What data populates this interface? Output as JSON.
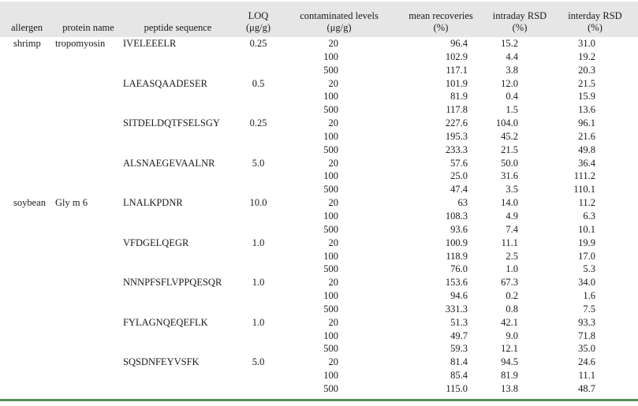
{
  "table": {
    "colors": {
      "header_bg": "#e6e6e6",
      "bottom_rule": "#5b8c5a",
      "text": "#1a1a20"
    },
    "columns": [
      {
        "line1": "allergen",
        "line2": ""
      },
      {
        "line1": "protein name",
        "line2": ""
      },
      {
        "line1": "peptide sequence",
        "line2": ""
      },
      {
        "line1": "LOQ",
        "line2": "(μg/g)"
      },
      {
        "line1": "contaminated levels",
        "line2": "(μg/g)"
      },
      {
        "line1": "mean recoveries",
        "line2": "(%)"
      },
      {
        "line1": "intraday RSD",
        "line2": "(%)"
      },
      {
        "line1": "interday RSD",
        "line2": "(%)"
      }
    ],
    "groups": [
      {
        "allergen": "shrimp",
        "protein": "tropomyosin",
        "peptides": [
          {
            "sequence": "IVELEEELR",
            "loq": "0.25",
            "rows": [
              [
                "20",
                "96.4",
                "15.2",
                "31.0"
              ],
              [
                "100",
                "102.9",
                "4.4",
                "19.2"
              ],
              [
                "500",
                "117.1",
                "3.8",
                "20.3"
              ]
            ]
          },
          {
            "sequence": "LAEASQAADESER",
            "loq": "0.5",
            "rows": [
              [
                "20",
                "101.9",
                "12.0",
                "21.5"
              ],
              [
                "100",
                "81.9",
                "0.4",
                "15.9"
              ],
              [
                "500",
                "117.8",
                "1.5",
                "13.6"
              ]
            ]
          },
          {
            "sequence": "SITDELDQTFSELSGY",
            "loq": "0.25",
            "rows": [
              [
                "20",
                "227.6",
                "104.0",
                "96.1"
              ],
              [
                "100",
                "195.3",
                "45.2",
                "21.6"
              ],
              [
                "500",
                "233.3",
                "21.5",
                "49.8"
              ]
            ]
          },
          {
            "sequence": "ALSNAEGEVAALNR",
            "loq": "5.0",
            "rows": [
              [
                "20",
                "57.6",
                "50.0",
                "36.4"
              ],
              [
                "100",
                "25.0",
                "31.6",
                "111.2"
              ],
              [
                "500",
                "47.4",
                "3.5",
                "110.1"
              ]
            ]
          }
        ]
      },
      {
        "allergen": "soybean",
        "protein": "Gly m 6",
        "peptides": [
          {
            "sequence": "LNALKPDNR",
            "loq": "10.0",
            "rows": [
              [
                "20",
                "63",
                "14.0",
                "11.2"
              ],
              [
                "100",
                "108.3",
                "4.9",
                "6.3"
              ],
              [
                "500",
                "93.6",
                "7.4",
                "10.1"
              ]
            ]
          },
          {
            "sequence": "VFDGELQEGR",
            "loq": "1.0",
            "rows": [
              [
                "20",
                "100.9",
                "11.1",
                "19.9"
              ],
              [
                "100",
                "118.9",
                "2.5",
                "17.0"
              ],
              [
                "500",
                "76.0",
                "1.0",
                "5.3"
              ]
            ]
          },
          {
            "sequence": "NNNPFSFLVPPQESQR",
            "loq": "1.0",
            "rows": [
              [
                "20",
                "153.6",
                "67.3",
                "34.0"
              ],
              [
                "100",
                "94.6",
                "0.2",
                "1.6"
              ],
              [
                "500",
                "331.3",
                "0.8",
                "7.5"
              ]
            ]
          },
          {
            "sequence": "FYLAGNQEQEFLK",
            "loq": "1.0",
            "rows": [
              [
                "20",
                "51.3",
                "42.1",
                "93.3"
              ],
              [
                "100",
                "49.7",
                "9.0",
                "71.8"
              ],
              [
                "500",
                "59.3",
                "12.1",
                "35.0"
              ]
            ]
          },
          {
            "sequence": "SQSDNFEYVSFK",
            "loq": "5.0",
            "rows": [
              [
                "20",
                "81.4",
                "94.5",
                "24.6"
              ],
              [
                "100",
                "85.4",
                "81.9",
                "11.1"
              ],
              [
                "500",
                "115.0",
                "13.8",
                "48.7"
              ]
            ]
          }
        ]
      }
    ]
  }
}
